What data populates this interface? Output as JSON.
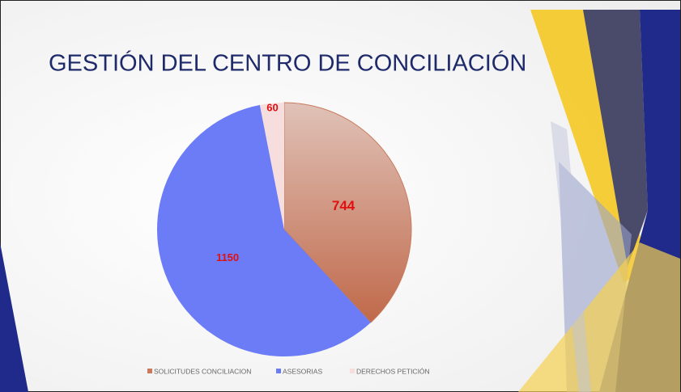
{
  "chart_data": {
    "type": "pie",
    "title": "GESTIÓN DEL CENTRO DE CONCILIACIÓN",
    "categories": [
      "SOLICITUDES CONCILIACION",
      "ASESORIAS",
      "DERECHOS PETICIÓN"
    ],
    "values": [
      744,
      1150,
      60
    ],
    "colors": [
      "#c97a5c",
      "#6b7cf6",
      "#f7dede"
    ]
  }
}
